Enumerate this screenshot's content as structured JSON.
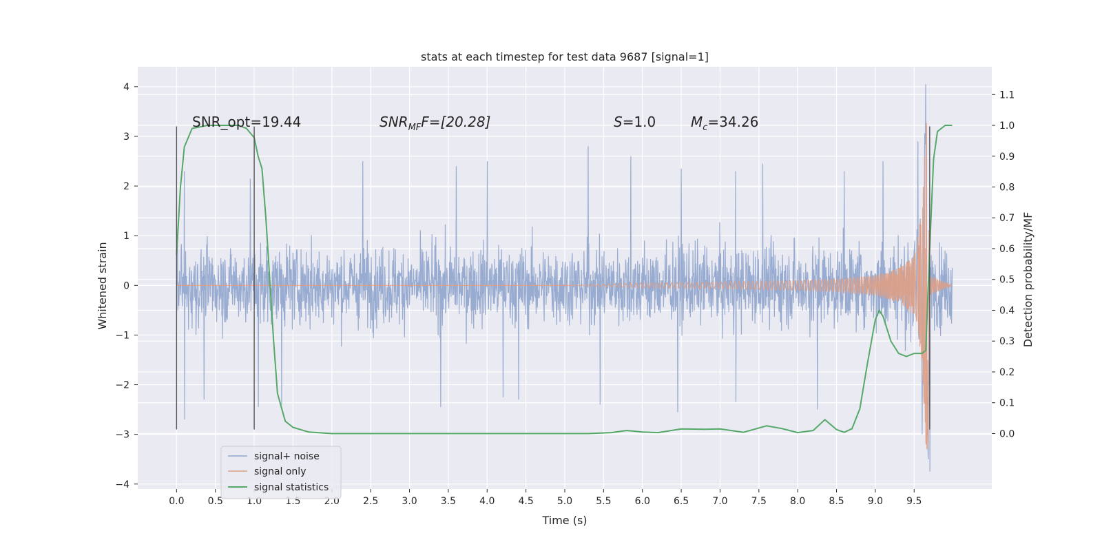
{
  "chart_data": {
    "type": "line",
    "title": "stats at each timestep for test data 9687 [signal=1]",
    "xlabel": "Time (s)",
    "ylabel": "Whitened strain",
    "ylabel_right": "Detection probability/MF",
    "xlim": [
      -0.5,
      10.5
    ],
    "ylim": [
      -4.1,
      4.4
    ],
    "ylim_right": [
      -0.18,
      1.19
    ],
    "x_ticks": [
      0.0,
      0.5,
      1.0,
      1.5,
      2.0,
      2.5,
      3.0,
      3.5,
      4.0,
      4.5,
      5.0,
      5.5,
      6.0,
      6.5,
      7.0,
      7.5,
      8.0,
      8.5,
      9.0,
      9.5
    ],
    "x_tick_labels": [
      "0.0",
      "0.5",
      "1.0",
      "1.5",
      "2.0",
      "2.5",
      "3.0",
      "3.5",
      "4.0",
      "4.5",
      "5.0",
      "5.5",
      "6.0",
      "6.5",
      "7.0",
      "7.5",
      "8.0",
      "8.5",
      "9.0",
      "9.5"
    ],
    "y_ticks": [
      4,
      3,
      2,
      1,
      0,
      -1,
      -2,
      -3,
      -4
    ],
    "y_tick_labels": [
      "4",
      "3",
      "2",
      "1",
      "0",
      "−1",
      "−2",
      "−3",
      "−4"
    ],
    "y_right_ticks": [
      1.1,
      1.0,
      0.9,
      0.8,
      0.7,
      0.6,
      0.5,
      0.4,
      0.3,
      0.2,
      0.1,
      0.0
    ],
    "y_right_tick_labels": [
      "1.1",
      "1.0",
      "0.9",
      "0.8",
      "0.7",
      "0.6",
      "0.5",
      "0.4",
      "0.3",
      "0.2",
      "0.1",
      "0.0"
    ],
    "grid": true,
    "legend_position": "lower-left",
    "annotations": {
      "snr_opt": "SNR_opt=19.44",
      "snr_mf_main": "SNR",
      "snr_mf_sub": "MF",
      "snr_mf_rest": "F=[20.28]",
      "s_main": "S",
      "s_rest": "=1.0",
      "mc_main": "M",
      "mc_sub": "c",
      "mc_rest": "=34.26"
    },
    "vertical_markers": [
      {
        "x": 0.0,
        "y_range": [
          -2.9,
          3.2
        ]
      },
      {
        "x": 1.0,
        "y_range": [
          -2.9,
          3.2
        ]
      },
      {
        "x": 9.7,
        "y_range": [
          -2.9,
          3.2
        ]
      }
    ],
    "series": [
      {
        "name": "signal+ noise",
        "color": "#8fa4cc",
        "kind": "noise",
        "x_range": [
          0.0,
          9.99
        ],
        "typical_envelope": [
          -1.0,
          1.0
        ],
        "peaks": [
          {
            "x": 0.0,
            "y": 1.65
          },
          {
            "x": 0.1,
            "y": 2.3
          },
          {
            "x": 0.95,
            "y": 2.15
          },
          {
            "x": 2.4,
            "y": 2.5
          },
          {
            "x": 3.6,
            "y": 2.4
          },
          {
            "x": 4.0,
            "y": 2.5
          },
          {
            "x": 5.3,
            "y": 2.8
          },
          {
            "x": 5.85,
            "y": 2.6
          },
          {
            "x": 6.5,
            "y": 2.35
          },
          {
            "x": 7.2,
            "y": 2.3
          },
          {
            "x": 7.55,
            "y": 2.45
          },
          {
            "x": 8.6,
            "y": 2.3
          },
          {
            "x": 9.1,
            "y": 2.5
          },
          {
            "x": 9.55,
            "y": 2.9
          },
          {
            "x": 9.65,
            "y": 4.05
          }
        ],
        "troughs": [
          {
            "x": 0.1,
            "y": -2.7
          },
          {
            "x": 0.35,
            "y": -2.3
          },
          {
            "x": 1.05,
            "y": -2.45
          },
          {
            "x": 1.35,
            "y": -2.4
          },
          {
            "x": 3.4,
            "y": -2.45
          },
          {
            "x": 4.2,
            "y": -2.25
          },
          {
            "x": 4.4,
            "y": -2.3
          },
          {
            "x": 5.45,
            "y": -2.4
          },
          {
            "x": 6.45,
            "y": -2.55
          },
          {
            "x": 7.2,
            "y": -2.35
          },
          {
            "x": 8.25,
            "y": -2.5
          },
          {
            "x": 9.6,
            "y": -3.0
          },
          {
            "x": 9.7,
            "y": -3.75
          }
        ]
      },
      {
        "name": "signal only",
        "color": "#dd9f86",
        "kind": "chirp",
        "x": [
          0.0,
          5.0,
          6.0,
          7.0,
          8.0,
          8.5,
          9.0,
          9.3,
          9.5,
          9.6,
          9.65,
          9.68,
          9.7,
          9.99
        ],
        "amplitude": [
          0.0,
          0.0,
          0.05,
          0.07,
          0.1,
          0.13,
          0.2,
          0.35,
          0.6,
          1.5,
          3.2,
          3.5,
          0.2,
          0.0
        ]
      },
      {
        "name": "signal statistics",
        "color": "#55a868",
        "kind": "line",
        "axis": "right",
        "x": [
          0.0,
          0.05,
          0.1,
          0.2,
          0.4,
          0.6,
          0.8,
          0.9,
          1.0,
          1.05,
          1.1,
          1.15,
          1.2,
          1.25,
          1.3,
          1.4,
          1.5,
          1.7,
          2.0,
          2.5,
          3.0,
          3.5,
          4.0,
          4.5,
          5.0,
          5.3,
          5.6,
          5.8,
          6.0,
          6.2,
          6.5,
          6.8,
          7.0,
          7.3,
          7.6,
          7.8,
          8.0,
          8.2,
          8.35,
          8.5,
          8.6,
          8.7,
          8.8,
          8.9,
          9.0,
          9.05,
          9.1,
          9.2,
          9.3,
          9.4,
          9.5,
          9.55,
          9.6,
          9.65,
          9.7,
          9.75,
          9.8,
          9.9,
          9.99
        ],
        "y": [
          0.58,
          0.8,
          0.93,
          0.99,
          1.0,
          1.0,
          1.0,
          0.99,
          0.96,
          0.9,
          0.86,
          0.7,
          0.5,
          0.3,
          0.13,
          0.04,
          0.02,
          0.005,
          0.0,
          0.0,
          0.0,
          0.0,
          0.0,
          0.0,
          0.0,
          0.0,
          0.003,
          0.01,
          0.005,
          0.003,
          0.015,
          0.014,
          0.015,
          0.004,
          0.025,
          0.016,
          0.003,
          0.01,
          0.045,
          0.013,
          0.004,
          0.016,
          0.08,
          0.23,
          0.37,
          0.4,
          0.38,
          0.3,
          0.26,
          0.25,
          0.26,
          0.26,
          0.26,
          0.27,
          0.6,
          0.89,
          0.98,
          1.0,
          1.0
        ]
      }
    ]
  }
}
